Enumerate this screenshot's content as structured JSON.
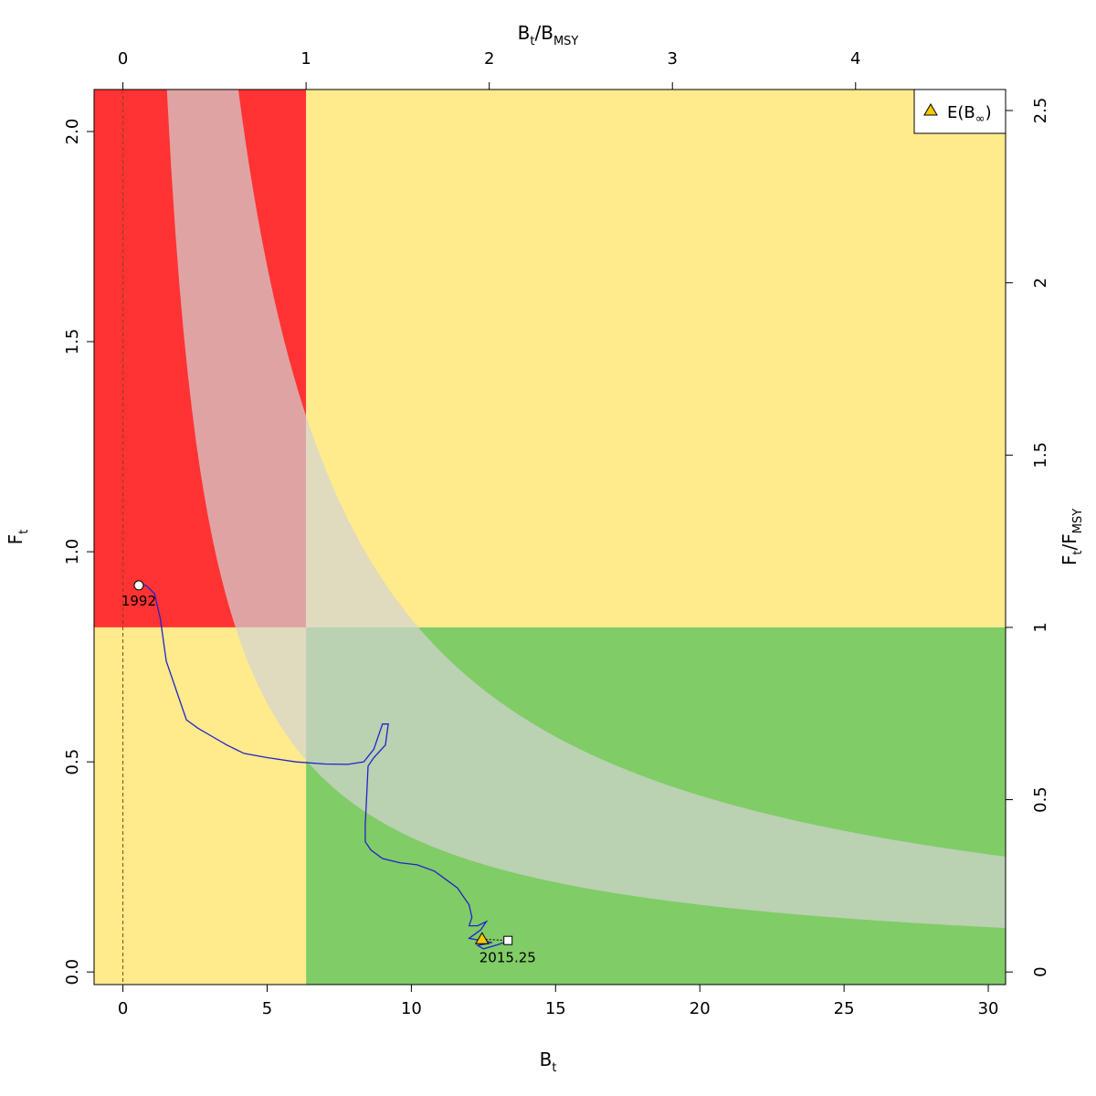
{
  "chart_data": {
    "type": "line",
    "title": "",
    "xlabel": {
      "main": "B",
      "sub": "t"
    },
    "ylabel": {
      "main": "F",
      "sub": "t"
    },
    "x2label": {
      "main": "B",
      "sub": "t",
      "sep": "/",
      "main2": "B",
      "sub2": "MSY"
    },
    "y2label": {
      "main": "F",
      "sub": "t",
      "sep": "/",
      "main2": "F",
      "sub2": "MSY"
    },
    "xlim": [
      -1.0,
      30.6
    ],
    "ylim": [
      -0.03,
      2.1
    ],
    "x_ticks": [
      0,
      5,
      10,
      15,
      20,
      25,
      30
    ],
    "x_tick_labels": [
      "0",
      "5",
      "10",
      "15",
      "20",
      "25",
      "30"
    ],
    "y_ticks": [
      0.0,
      0.5,
      1.0,
      1.5,
      2.0
    ],
    "y_tick_labels": [
      "0.0",
      "0.5",
      "1.0",
      "1.5",
      "2.0"
    ],
    "bmsy": 6.35,
    "fmsy": 0.82,
    "x2_ticks": [
      0,
      1,
      2,
      3,
      4
    ],
    "x2_tick_labels": [
      "0",
      "1",
      "2",
      "3",
      "4"
    ],
    "y2_ticks": [
      0,
      0.5,
      1,
      1.5,
      2,
      2.5
    ],
    "y2_tick_labels": [
      "0",
      "0.5",
      "1",
      "1.5",
      "2",
      "2.5"
    ],
    "zones": {
      "red": "#ff3333",
      "yellow": "#ffea8c",
      "green": "#80cc66",
      "msy_band": "#d3d3d3",
      "trajectory": "#2222cc",
      "triangle": "#f5c800"
    },
    "msy_band": {
      "note": "MSY curve band F = C/B",
      "upper_c": 8.4,
      "lower_c": 3.2
    },
    "trajectory": [
      [
        0.55,
        0.92
      ],
      [
        0.8,
        0.92
      ],
      [
        1.1,
        0.9
      ],
      [
        1.3,
        0.84
      ],
      [
        1.5,
        0.74
      ],
      [
        1.7,
        0.7
      ],
      [
        1.9,
        0.66
      ],
      [
        2.2,
        0.6
      ],
      [
        2.6,
        0.58
      ],
      [
        3.1,
        0.56
      ],
      [
        3.6,
        0.54
      ],
      [
        4.2,
        0.52
      ],
      [
        5.0,
        0.51
      ],
      [
        6.0,
        0.5
      ],
      [
        7.0,
        0.495
      ],
      [
        7.8,
        0.494
      ],
      [
        8.35,
        0.5
      ],
      [
        8.7,
        0.53
      ],
      [
        9.0,
        0.59
      ],
      [
        9.2,
        0.59
      ],
      [
        9.1,
        0.54
      ],
      [
        8.7,
        0.51
      ],
      [
        8.5,
        0.49
      ],
      [
        8.45,
        0.42
      ],
      [
        8.4,
        0.35
      ],
      [
        8.4,
        0.31
      ],
      [
        8.6,
        0.29
      ],
      [
        9.0,
        0.27
      ],
      [
        9.6,
        0.26
      ],
      [
        10.2,
        0.255
      ],
      [
        10.8,
        0.24
      ],
      [
        11.3,
        0.215
      ],
      [
        11.6,
        0.2
      ],
      [
        11.85,
        0.175
      ],
      [
        12.0,
        0.16
      ],
      [
        12.1,
        0.13
      ],
      [
        12.0,
        0.11
      ],
      [
        12.3,
        0.11
      ],
      [
        12.6,
        0.12
      ],
      [
        12.4,
        0.1
      ],
      [
        12.2,
        0.09
      ],
      [
        12.0,
        0.08
      ],
      [
        12.4,
        0.075
      ],
      [
        12.8,
        0.07
      ],
      [
        12.3,
        0.063
      ],
      [
        12.5,
        0.055
      ],
      [
        13.0,
        0.065
      ],
      [
        13.3,
        0.072
      ]
    ],
    "start": {
      "x": 0.55,
      "y": 0.92,
      "label": "1992"
    },
    "end": {
      "x": 13.35,
      "y": 0.075,
      "label": "2015.25"
    },
    "expected": {
      "x": 12.45,
      "y": 0.078
    },
    "legend": {
      "label_main": "E(B",
      "label_sub": "∞",
      "label_end": ")",
      "placement": "top-right"
    }
  }
}
